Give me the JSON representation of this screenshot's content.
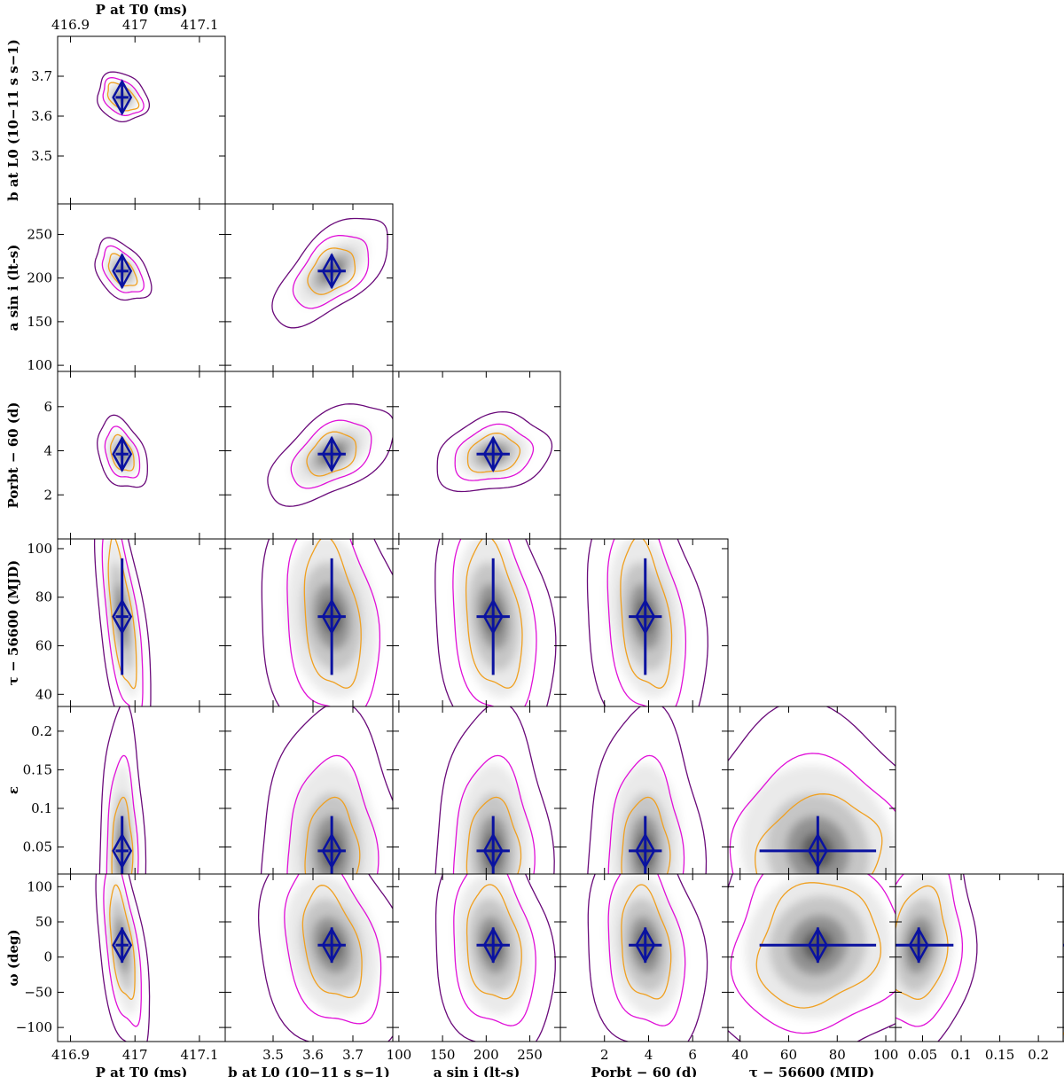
{
  "chart_data": {
    "type": "corner",
    "parameters": [
      {
        "id": "P",
        "label": "P at T0 (ms)",
        "range": [
          416.88,
          417.14
        ],
        "ticks": [
          416.9,
          417,
          417.1
        ],
        "tick_labels": [
          "416.9",
          "417",
          "417.1"
        ],
        "best": 416.98,
        "err": 0.01
      },
      {
        "id": "b",
        "label": "b at L0 (10^-11 s s^-1)",
        "range": [
          3.38,
          3.8
        ],
        "ticks": [
          3.5,
          3.6,
          3.7
        ],
        "tick_labels": [
          "3.5",
          "3.6",
          "3.7"
        ],
        "best": 3.647,
        "err": 0.035
      },
      {
        "id": "asini",
        "label": "a sin i (lt-s)",
        "range": [
          93,
          285
        ],
        "ticks": [
          100,
          150,
          200,
          250
        ],
        "tick_labels": [
          "100",
          "150",
          "200",
          "250"
        ],
        "best": 208,
        "err": 19
      },
      {
        "id": "Porb",
        "label": "Porbt - 60 (d)",
        "range": [
          0,
          7.6
        ],
        "ticks": [
          2,
          4,
          6
        ],
        "tick_labels": [
          "2",
          "4",
          "6"
        ],
        "best": 3.85,
        "err": 0.75
      },
      {
        "id": "tau",
        "label": "tau - 56600 (MJD)",
        "range": [
          35,
          104
        ],
        "ticks": [
          40,
          60,
          80,
          100
        ],
        "tick_labels": [
          "40",
          "60",
          "80",
          "100"
        ],
        "best": 72,
        "err": 24
      },
      {
        "id": "eps",
        "label": "epsilon",
        "range": [
          0.015,
          0.232
        ],
        "ticks": [
          0.05,
          0.1,
          0.15,
          0.2
        ],
        "tick_labels": [
          "0.05",
          "0.1",
          "0.15",
          "0.2"
        ],
        "best": 0.045,
        "err": 0.045
      },
      {
        "id": "omega",
        "label": "omega (deg)",
        "range": [
          -120,
          118
        ],
        "ticks": [
          -100,
          -50,
          0,
          50,
          100
        ],
        "tick_labels": [
          "−100",
          "−50",
          "0",
          "50",
          "100"
        ],
        "best": 17,
        "err": 25
      }
    ],
    "eps_bottom_ticks": [
      0.1,
      0.2
    ],
    "eps_bottom_tick_labels": [
      "0.1",
      "0.2"
    ],
    "axis_titles": {
      "top": "P at T0 (ms)",
      "bottom": [
        "P at T0 (ms)",
        "b at L0 (10−11 s s−1)",
        "a sin i (lt-s)",
        "Porbt − 60 (d)",
        "τ − 56600 (MJD)",
        "ε"
      ],
      "left": [
        "b at L0 (10−11 s s−1)",
        "a sin i (lt-s)",
        "Porbt − 60 (d)",
        "τ − 56600 (MJD)",
        "ε",
        "ω (deg)"
      ]
    },
    "colors": {
      "contour_outer": "#6a0a7a",
      "contour_mid": "#e010d8",
      "contour_inner": "#f0a020",
      "best_fit": "#0a12a0",
      "density": "#000000"
    },
    "contour_levels": [
      "outer",
      "mid",
      "inner"
    ],
    "grid": false,
    "legend": "none"
  }
}
